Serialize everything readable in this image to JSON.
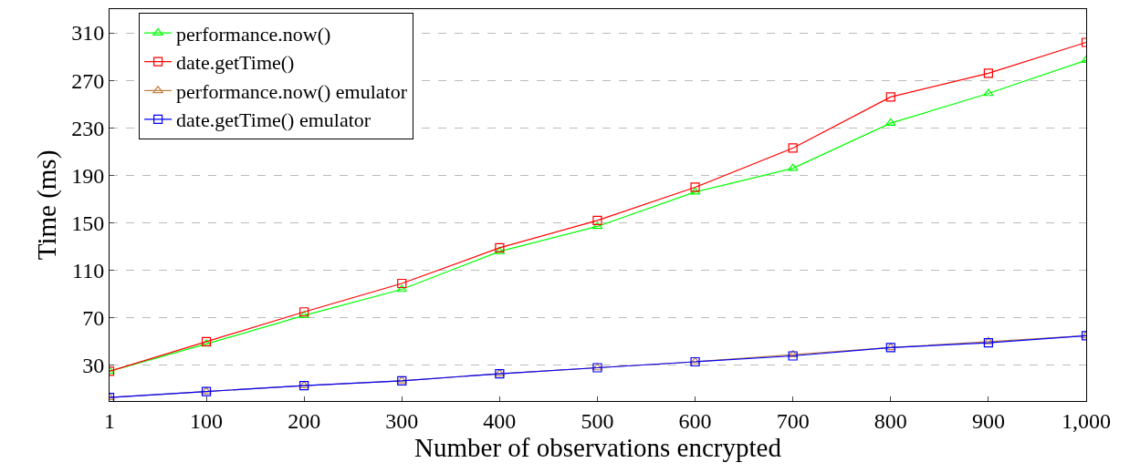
{
  "chart_data": {
    "type": "line",
    "xlabel": "Number of observations encrypted",
    "ylabel": "Time (ms)",
    "x": [
      1,
      100,
      200,
      300,
      400,
      500,
      600,
      700,
      800,
      900,
      1000
    ],
    "xlim": [
      1,
      1000
    ],
    "xticks": [
      1,
      100,
      200,
      300,
      400,
      500,
      600,
      700,
      800,
      900,
      {
        "value": 1000,
        "label": "1,000"
      }
    ],
    "ylim": [
      0,
      330
    ],
    "yticks": [
      30,
      70,
      110,
      150,
      190,
      230,
      270,
      310
    ],
    "grid": "y",
    "legend": "top left",
    "series": [
      {
        "name": "performance.now()",
        "color": "#00ff00",
        "marker": "triangle",
        "values": [
          25,
          48,
          72,
          94,
          126,
          147,
          176,
          196,
          234,
          259,
          287
        ]
      },
      {
        "name": "date.getTime()",
        "color": "#ff0000",
        "marker": "square",
        "values": [
          25,
          50,
          75,
          99,
          129,
          152,
          180,
          213,
          256,
          276,
          302
        ]
      },
      {
        "name": "performance.now() emulator",
        "color": "#bf8040",
        "marker": "triangle",
        "values": [
          3,
          8,
          13,
          17,
          23,
          28,
          33,
          39,
          45,
          50,
          55
        ]
      },
      {
        "name": "date.getTime() emulator",
        "color": "#0000ff",
        "marker": "square",
        "values": [
          3,
          8,
          13,
          17,
          23,
          28,
          33,
          38,
          45,
          49,
          55
        ]
      }
    ]
  }
}
